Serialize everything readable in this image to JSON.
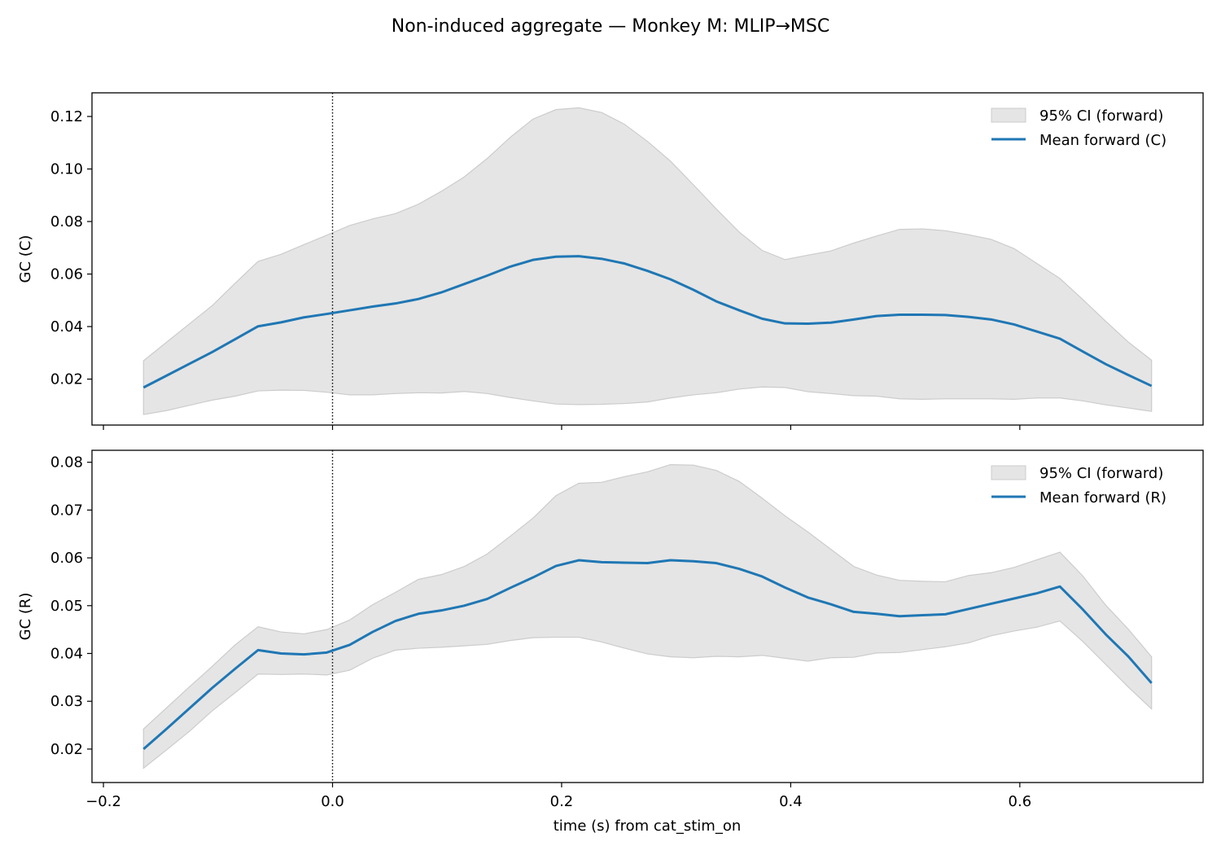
{
  "figure": {
    "title": "Non-induced aggregate — Monkey M: MLIP→MSC",
    "xlabel": "time (s) from cat_stim_on"
  },
  "colors": {
    "mean_line": "#1f77b4",
    "ci_fill": "#e5e5e5",
    "ci_edge": "#cccccc",
    "event_line": "#000000"
  },
  "chart_data": [
    {
      "type": "line",
      "panel": "top",
      "ylabel": "GC (C)",
      "xlim": [
        -0.21,
        0.76
      ],
      "ylim": [
        0.0025,
        0.129
      ],
      "yticks": [
        0.02,
        0.04,
        0.06,
        0.08,
        0.1,
        0.12
      ],
      "ytick_labels": [
        "0.02",
        "0.04",
        "0.06",
        "0.08",
        "0.10",
        "0.12"
      ],
      "xticks": [
        -0.2,
        0.0,
        0.2,
        0.4,
        0.6
      ],
      "xtick_labels": [
        "",
        "",
        "",
        "",
        ""
      ],
      "event_line_x": 0.0,
      "legend_position": "top-right",
      "legend": [
        "95% CI (forward)",
        "Mean forward (C)"
      ],
      "x": [
        -0.165,
        -0.145,
        -0.125,
        -0.105,
        -0.085,
        -0.065,
        -0.045,
        -0.025,
        -0.005,
        0.015,
        0.035,
        0.055,
        0.075,
        0.095,
        0.115,
        0.135,
        0.155,
        0.175,
        0.195,
        0.215,
        0.235,
        0.255,
        0.275,
        0.295,
        0.315,
        0.335,
        0.355,
        0.375,
        0.395,
        0.415,
        0.435,
        0.455,
        0.475,
        0.495,
        0.515,
        0.535,
        0.555,
        0.575,
        0.595,
        0.615,
        0.635,
        0.655,
        0.675,
        0.695,
        0.715
      ],
      "series": [
        {
          "name": "Mean forward (C)",
          "values": [
            0.0168,
            0.0213,
            0.0258,
            0.0303,
            0.0352,
            0.0401,
            0.0416,
            0.0435,
            0.0448,
            0.0462,
            0.0476,
            0.0488,
            0.0505,
            0.053,
            0.0562,
            0.0594,
            0.0628,
            0.0654,
            0.0666,
            0.0668,
            0.0658,
            0.064,
            0.0612,
            0.058,
            0.054,
            0.0496,
            0.0462,
            0.043,
            0.0412,
            0.0411,
            0.0415,
            0.0427,
            0.044,
            0.0445,
            0.0445,
            0.0444,
            0.0437,
            0.0427,
            0.0408,
            0.0381,
            0.0354,
            0.0305,
            0.0257,
            0.0215,
            0.0174
          ]
        }
      ],
      "ci_lower": [
        0.0065,
        0.008,
        0.01,
        0.012,
        0.0135,
        0.0155,
        0.0158,
        0.0157,
        0.015,
        0.014,
        0.014,
        0.0145,
        0.0148,
        0.0147,
        0.0153,
        0.0145,
        0.013,
        0.0117,
        0.0105,
        0.0103,
        0.0104,
        0.0107,
        0.0113,
        0.0128,
        0.014,
        0.0148,
        0.0162,
        0.017,
        0.0168,
        0.0152,
        0.0145,
        0.0137,
        0.0135,
        0.0125,
        0.0123,
        0.0125,
        0.0125,
        0.0125,
        0.0123,
        0.0128,
        0.0128,
        0.0117,
        0.0102,
        0.009,
        0.0077
      ],
      "ci_upper": [
        0.027,
        0.034,
        0.041,
        0.048,
        0.0565,
        0.0648,
        0.0675,
        0.0712,
        0.0748,
        0.0785,
        0.081,
        0.083,
        0.0866,
        0.0915,
        0.097,
        0.104,
        0.112,
        0.119,
        0.1226,
        0.1233,
        0.1215,
        0.117,
        0.1105,
        0.103,
        0.094,
        0.0848,
        0.076,
        0.069,
        0.0655,
        0.0672,
        0.0688,
        0.0718,
        0.0745,
        0.077,
        0.0772,
        0.0765,
        0.075,
        0.0732,
        0.0697,
        0.064,
        0.0583,
        0.0503,
        0.042,
        0.034,
        0.0272
      ]
    },
    {
      "type": "line",
      "panel": "bottom",
      "ylabel": "GC (R)",
      "xlim": [
        -0.21,
        0.76
      ],
      "ylim": [
        0.013,
        0.0825
      ],
      "yticks": [
        0.02,
        0.03,
        0.04,
        0.05,
        0.06,
        0.07,
        0.08
      ],
      "ytick_labels": [
        "0.02",
        "0.03",
        "0.04",
        "0.05",
        "0.06",
        "0.07",
        "0.08"
      ],
      "xticks": [
        -0.2,
        0.0,
        0.2,
        0.4,
        0.6
      ],
      "xtick_labels": [
        "−0.2",
        "0.0",
        "0.2",
        "0.4",
        "0.6"
      ],
      "event_line_x": 0.0,
      "legend_position": "top-right",
      "legend": [
        "95% CI (forward)",
        "Mean forward (R)"
      ],
      "x": [
        -0.165,
        -0.145,
        -0.125,
        -0.105,
        -0.085,
        -0.065,
        -0.045,
        -0.025,
        -0.005,
        0.015,
        0.035,
        0.055,
        0.075,
        0.095,
        0.115,
        0.135,
        0.155,
        0.175,
        0.195,
        0.215,
        0.235,
        0.255,
        0.275,
        0.295,
        0.315,
        0.335,
        0.355,
        0.375,
        0.395,
        0.415,
        0.435,
        0.455,
        0.475,
        0.495,
        0.515,
        0.535,
        0.555,
        0.575,
        0.595,
        0.615,
        0.635,
        0.655,
        0.675,
        0.695,
        0.715
      ],
      "series": [
        {
          "name": "Mean forward (R)",
          "values": [
            0.02,
            0.0242,
            0.0285,
            0.0328,
            0.0368,
            0.0407,
            0.04,
            0.0398,
            0.0402,
            0.0418,
            0.0445,
            0.0468,
            0.0483,
            0.049,
            0.05,
            0.0514,
            0.0537,
            0.0559,
            0.0583,
            0.0595,
            0.0591,
            0.059,
            0.0589,
            0.0595,
            0.0593,
            0.0589,
            0.0577,
            0.0561,
            0.0538,
            0.0517,
            0.0503,
            0.0487,
            0.0483,
            0.0478,
            0.048,
            0.0482,
            0.0493,
            0.0504,
            0.0515,
            0.0526,
            0.054,
            0.0492,
            0.044,
            0.0393,
            0.0338
          ]
        }
      ],
      "ci_lower": [
        0.016,
        0.0198,
        0.0237,
        0.028,
        0.0318,
        0.0357,
        0.0356,
        0.0357,
        0.0355,
        0.0365,
        0.039,
        0.0407,
        0.0411,
        0.0413,
        0.0416,
        0.0419,
        0.0427,
        0.0433,
        0.0434,
        0.0434,
        0.0424,
        0.0411,
        0.0399,
        0.0393,
        0.0391,
        0.0394,
        0.0393,
        0.0396,
        0.039,
        0.0384,
        0.0391,
        0.0392,
        0.0401,
        0.0402,
        0.0408,
        0.0414,
        0.0422,
        0.0437,
        0.0447,
        0.0455,
        0.0468,
        0.0425,
        0.0377,
        0.0329,
        0.0284
      ],
      "ci_upper": [
        0.0242,
        0.0286,
        0.033,
        0.0373,
        0.0418,
        0.0456,
        0.0445,
        0.0441,
        0.045,
        0.047,
        0.0502,
        0.0528,
        0.0555,
        0.0565,
        0.0582,
        0.0608,
        0.0645,
        0.0683,
        0.073,
        0.0756,
        0.0758,
        0.077,
        0.078,
        0.0795,
        0.0794,
        0.0783,
        0.076,
        0.0725,
        0.0688,
        0.0654,
        0.0618,
        0.0582,
        0.0564,
        0.0553,
        0.0551,
        0.055,
        0.0563,
        0.0569,
        0.058,
        0.0596,
        0.0612,
        0.0562,
        0.0501,
        0.045,
        0.0393
      ]
    }
  ]
}
